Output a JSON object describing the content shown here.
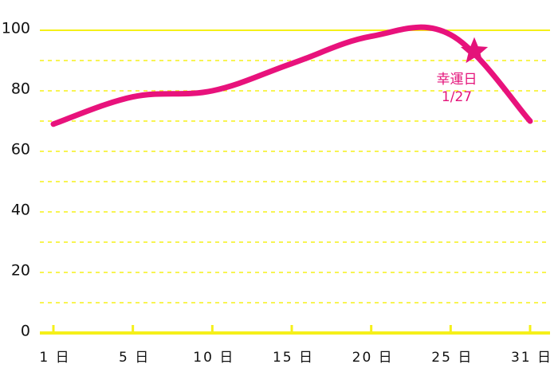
{
  "chart_data": {
    "type": "line",
    "categories": [
      "1 日",
      "5 日",
      "10 日",
      "15 日",
      "20 日",
      "25 日",
      "31 日"
    ],
    "series": [
      {
        "color": "#e8127c",
        "values": [
          69,
          78,
          80,
          89,
          98,
          98.5,
          70
        ]
      }
    ],
    "ylim": [
      0,
      100
    ],
    "yticks": [
      0,
      20,
      40,
      60,
      80,
      100
    ],
    "minor_yticks": [
      10,
      30,
      50,
      70,
      90
    ],
    "grid": true,
    "grid_color": "#f5f019",
    "annotation": {
      "lines": [
        "幸運日",
        "1/27"
      ],
      "value": 93,
      "color": "#e4137a"
    }
  }
}
